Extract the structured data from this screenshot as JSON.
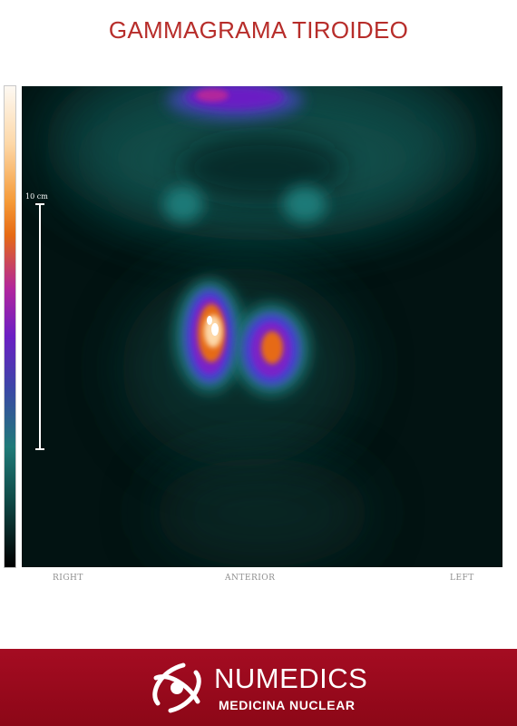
{
  "header": {
    "title": "GAMMAGRAMA TIROIDEO"
  },
  "scan": {
    "scale_label": "10 cm",
    "label_right": "RIGHT",
    "label_anterior": "ANTERIOR",
    "label_left": "LEFT",
    "colormap": [
      "#fdf9f3",
      "#f59a37",
      "#b2269c",
      "#6b1fc4",
      "#1f7a78",
      "#000000"
    ]
  },
  "footer": {
    "brand_name": "NUMEDICS",
    "brand_subtitle": "MEDICINA NUCLEAR",
    "background_color": "#a50c22",
    "logo_icon": "atom-person-icon"
  }
}
